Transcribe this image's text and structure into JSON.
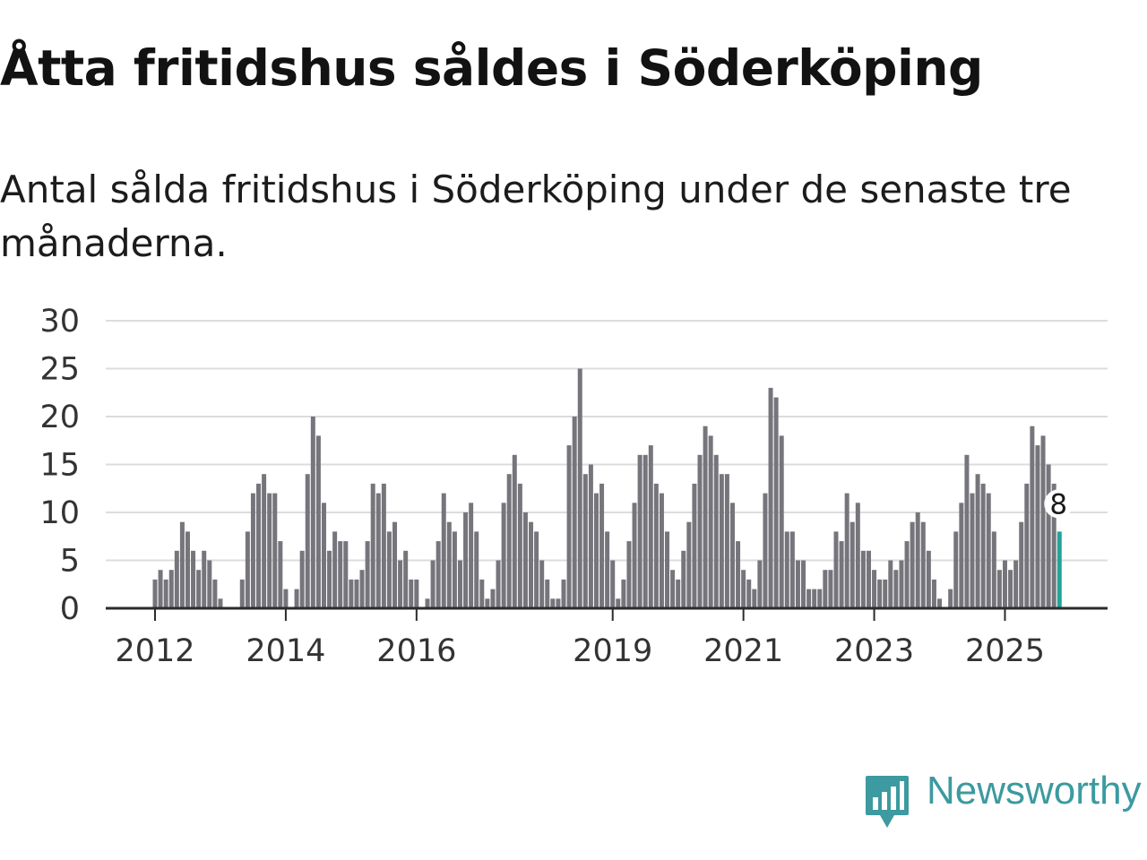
{
  "title": "Åtta fritidshus såldes i Söderköping",
  "subtitle": "Antal sålda fritidshus i Söderköping under de senaste tre månaderna.",
  "brand": {
    "name": "Newsworthy",
    "color": "#3c9aa0",
    "icon": "newsworthy-logo-icon"
  },
  "colors": {
    "bar": "#76757c",
    "highlight": "#23a39a",
    "grid": "#dcdcdc",
    "axis": "#2b2b2b"
  },
  "chart_data": {
    "type": "bar",
    "title": "Åtta fritidshus såldes i Söderköping",
    "subtitle": "Antal sålda fritidshus i Söderköping under de senaste tre månaderna.",
    "xlabel": "",
    "ylabel": "",
    "ylim": [
      0,
      30
    ],
    "yticks": [
      "0",
      "5",
      "10",
      "15",
      "20",
      "25",
      "30"
    ],
    "xticks": [
      {
        "label": "2012",
        "index": 0
      },
      {
        "label": "2014",
        "index": 24
      },
      {
        "label": "2016",
        "index": 48
      },
      {
        "label": "2019",
        "index": 84
      },
      {
        "label": "2021",
        "index": 108
      },
      {
        "label": "2023",
        "index": 132
      },
      {
        "label": "2025",
        "index": 156
      }
    ],
    "grid": true,
    "first_period": "2012-01",
    "values": [
      3,
      4,
      3,
      4,
      6,
      9,
      8,
      6,
      4,
      6,
      5,
      3,
      1,
      0,
      0,
      0,
      3,
      8,
      12,
      13,
      14,
      12,
      12,
      7,
      2,
      0,
      2,
      6,
      14,
      20,
      18,
      11,
      6,
      8,
      7,
      7,
      3,
      3,
      4,
      7,
      13,
      12,
      13,
      8,
      9,
      5,
      6,
      3,
      3,
      0,
      1,
      5,
      7,
      12,
      9,
      8,
      5,
      10,
      11,
      8,
      3,
      1,
      2,
      5,
      11,
      14,
      16,
      13,
      10,
      9,
      8,
      5,
      3,
      1,
      1,
      3,
      17,
      20,
      25,
      14,
      15,
      12,
      13,
      8,
      5,
      1,
      3,
      7,
      11,
      16,
      16,
      17,
      13,
      12,
      8,
      4,
      3,
      6,
      9,
      13,
      16,
      19,
      18,
      16,
      14,
      14,
      11,
      7,
      4,
      3,
      2,
      5,
      12,
      23,
      22,
      18,
      8,
      8,
      5,
      5,
      2,
      2,
      2,
      4,
      4,
      8,
      7,
      12,
      9,
      11,
      6,
      6,
      4,
      3,
      3,
      5,
      4,
      5,
      7,
      9,
      10,
      9,
      6,
      3,
      1,
      0,
      2,
      8,
      11,
      16,
      12,
      14,
      13,
      12,
      8,
      4,
      5,
      4,
      5,
      9,
      13,
      19,
      17,
      18,
      15,
      13,
      8
    ],
    "highlight_label": "8"
  }
}
